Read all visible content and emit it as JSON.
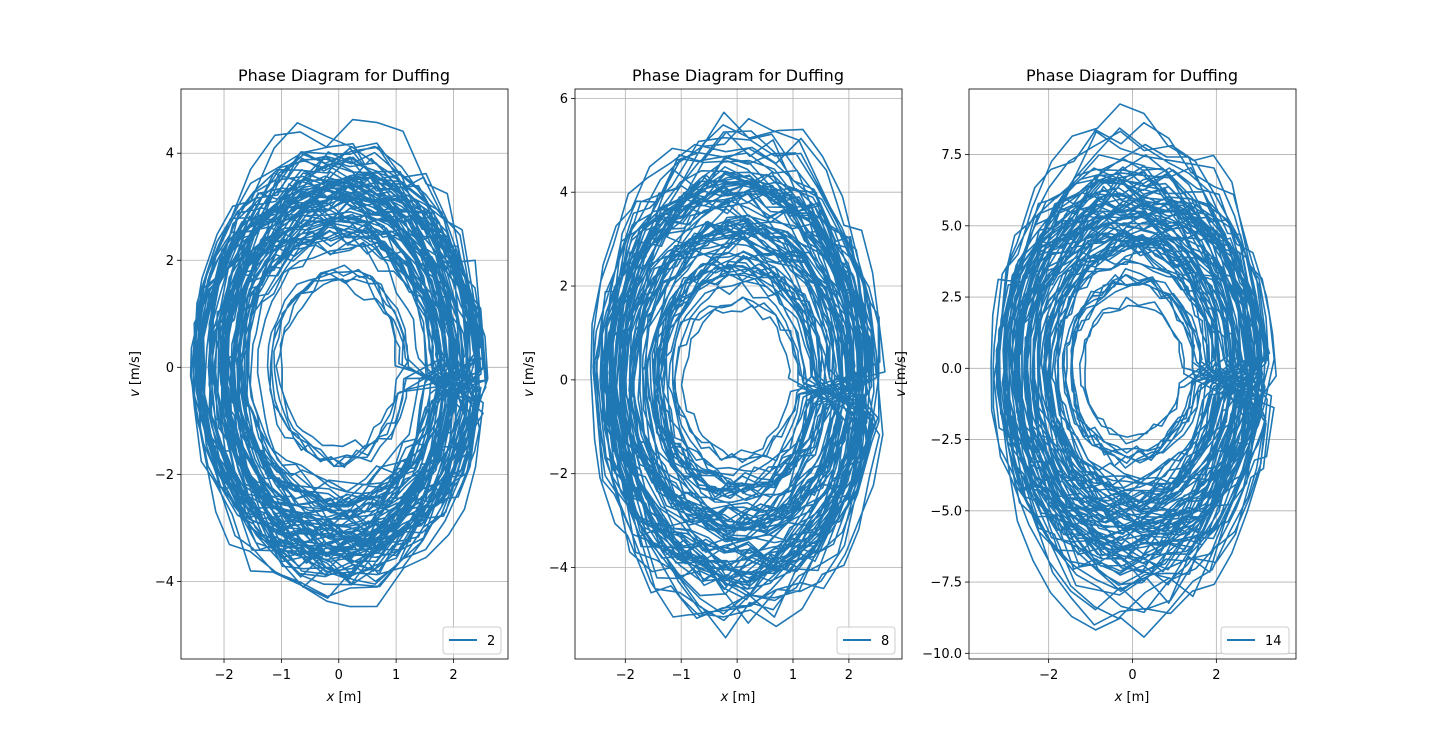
{
  "figure": {
    "background": "#ffffff",
    "grid_color": "#b0b0b0",
    "axis_color": "#000000"
  },
  "chart_data": [
    {
      "type": "line",
      "title": "Phase Diagram for Duffing",
      "xlabel_var": "x",
      "xlabel_unit": " [m]",
      "ylabel_var": "v",
      "ylabel_unit": " [m/s]",
      "xlim": [
        -2.75,
        2.95
      ],
      "ylim": [
        -5.45,
        5.2
      ],
      "xticks": [
        -2,
        -1,
        0,
        1,
        2
      ],
      "xtick_labels": [
        "−2",
        "−1",
        "0",
        "1",
        "2"
      ],
      "yticks": [
        -4,
        -2,
        0,
        2,
        4
      ],
      "ytick_labels": [
        "−4",
        "−2",
        "0",
        "2",
        "4"
      ],
      "grid": true,
      "legend_position": "lower right",
      "series": [
        {
          "name": "2",
          "color": "#1f77b4",
          "x_amplitude": [
            0.4,
            2.65
          ],
          "v_amplitude": [
            0.9,
            4.7
          ],
          "v_asymmetry": 1.0,
          "seed": 11
        }
      ]
    },
    {
      "type": "line",
      "title": "Phase Diagram for Duffing",
      "xlabel_var": "x",
      "xlabel_unit": " [m]",
      "ylabel_var": "v",
      "ylabel_unit": " [m/s]",
      "xlim": [
        -2.9,
        2.95
      ],
      "ylim": [
        -5.95,
        6.2
      ],
      "xticks": [
        -2,
        -1,
        0,
        1,
        2
      ],
      "xtick_labels": [
        "−2",
        "−1",
        "0",
        "1",
        "2"
      ],
      "yticks": [
        -4,
        -2,
        0,
        2,
        4,
        6
      ],
      "ytick_labels": [
        "−4",
        "−2",
        "0",
        "2",
        "4",
        "6"
      ],
      "grid": true,
      "legend_position": "lower right",
      "series": [
        {
          "name": "8",
          "color": "#1f77b4",
          "x_amplitude": [
            0.4,
            2.65
          ],
          "v_amplitude": [
            0.8,
            5.6
          ],
          "v_asymmetry": 0.97,
          "seed": 23
        }
      ]
    },
    {
      "type": "line",
      "title": "Phase Diagram for Duffing",
      "xlabel_var": "x",
      "xlabel_unit": " [m]",
      "ylabel_var": "v",
      "ylabel_unit": " [m/s]",
      "xlim": [
        -3.9,
        3.9
      ],
      "ylim": [
        -10.2,
        9.8
      ],
      "xticks": [
        -2,
        0,
        2
      ],
      "xtick_labels": [
        "−2",
        "0",
        "2"
      ],
      "yticks": [
        -10.0,
        -7.5,
        -5.0,
        -2.5,
        0.0,
        2.5,
        5.0,
        7.5
      ],
      "ytick_labels": [
        "−10.0",
        "−7.5",
        "−5.0",
        "−2.5",
        "0.0",
        "2.5",
        "5.0",
        "7.5"
      ],
      "grid": true,
      "legend_position": "lower right",
      "series": [
        {
          "name": "14",
          "color": "#1f77b4",
          "x_amplitude": [
            0.35,
            3.45
          ],
          "v_amplitude": [
            0.9,
            8.9
          ],
          "v_asymmetry": 1.03,
          "seed": 37
        }
      ]
    }
  ]
}
